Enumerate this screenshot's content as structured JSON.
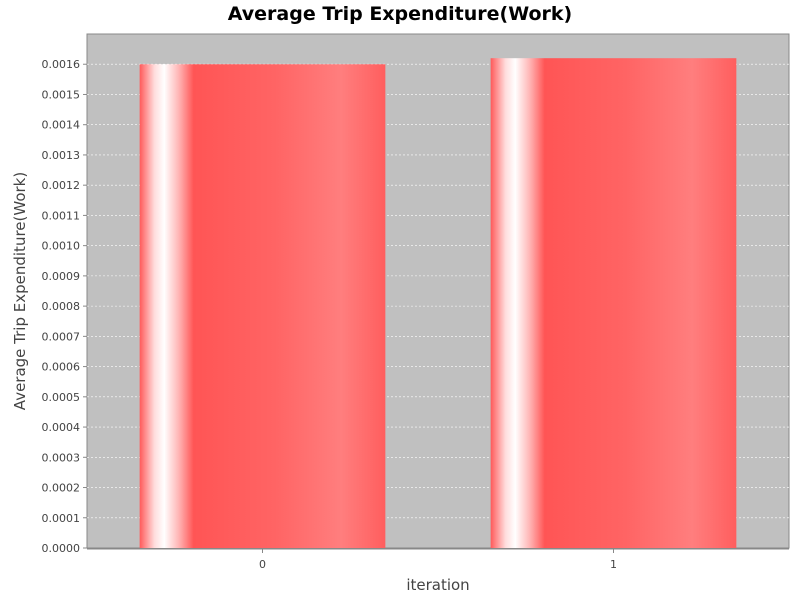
{
  "chart_data": {
    "type": "bar",
    "title": "Average Trip Expenditure(Work)",
    "xlabel": "iteration",
    "ylabel": "Average Trip Expenditure(Work)",
    "categories": [
      "0",
      "1"
    ],
    "series": [
      {
        "values": [
          0.0016,
          0.00162
        ]
      }
    ],
    "ylim": [
      0.0,
      0.0017
    ],
    "yticks": [
      "0.0000",
      "0.0001",
      "0.0002",
      "0.0003",
      "0.0004",
      "0.0005",
      "0.0006",
      "0.0007",
      "0.0008",
      "0.0009",
      "0.0010",
      "0.0011",
      "0.0012",
      "0.0013",
      "0.0014",
      "0.0015",
      "0.0016"
    ],
    "grid": true,
    "legend": "none",
    "colors": {
      "plot_background": "#c0c0c0",
      "bar": "#ff5555",
      "gridline": "#ffffff"
    }
  }
}
